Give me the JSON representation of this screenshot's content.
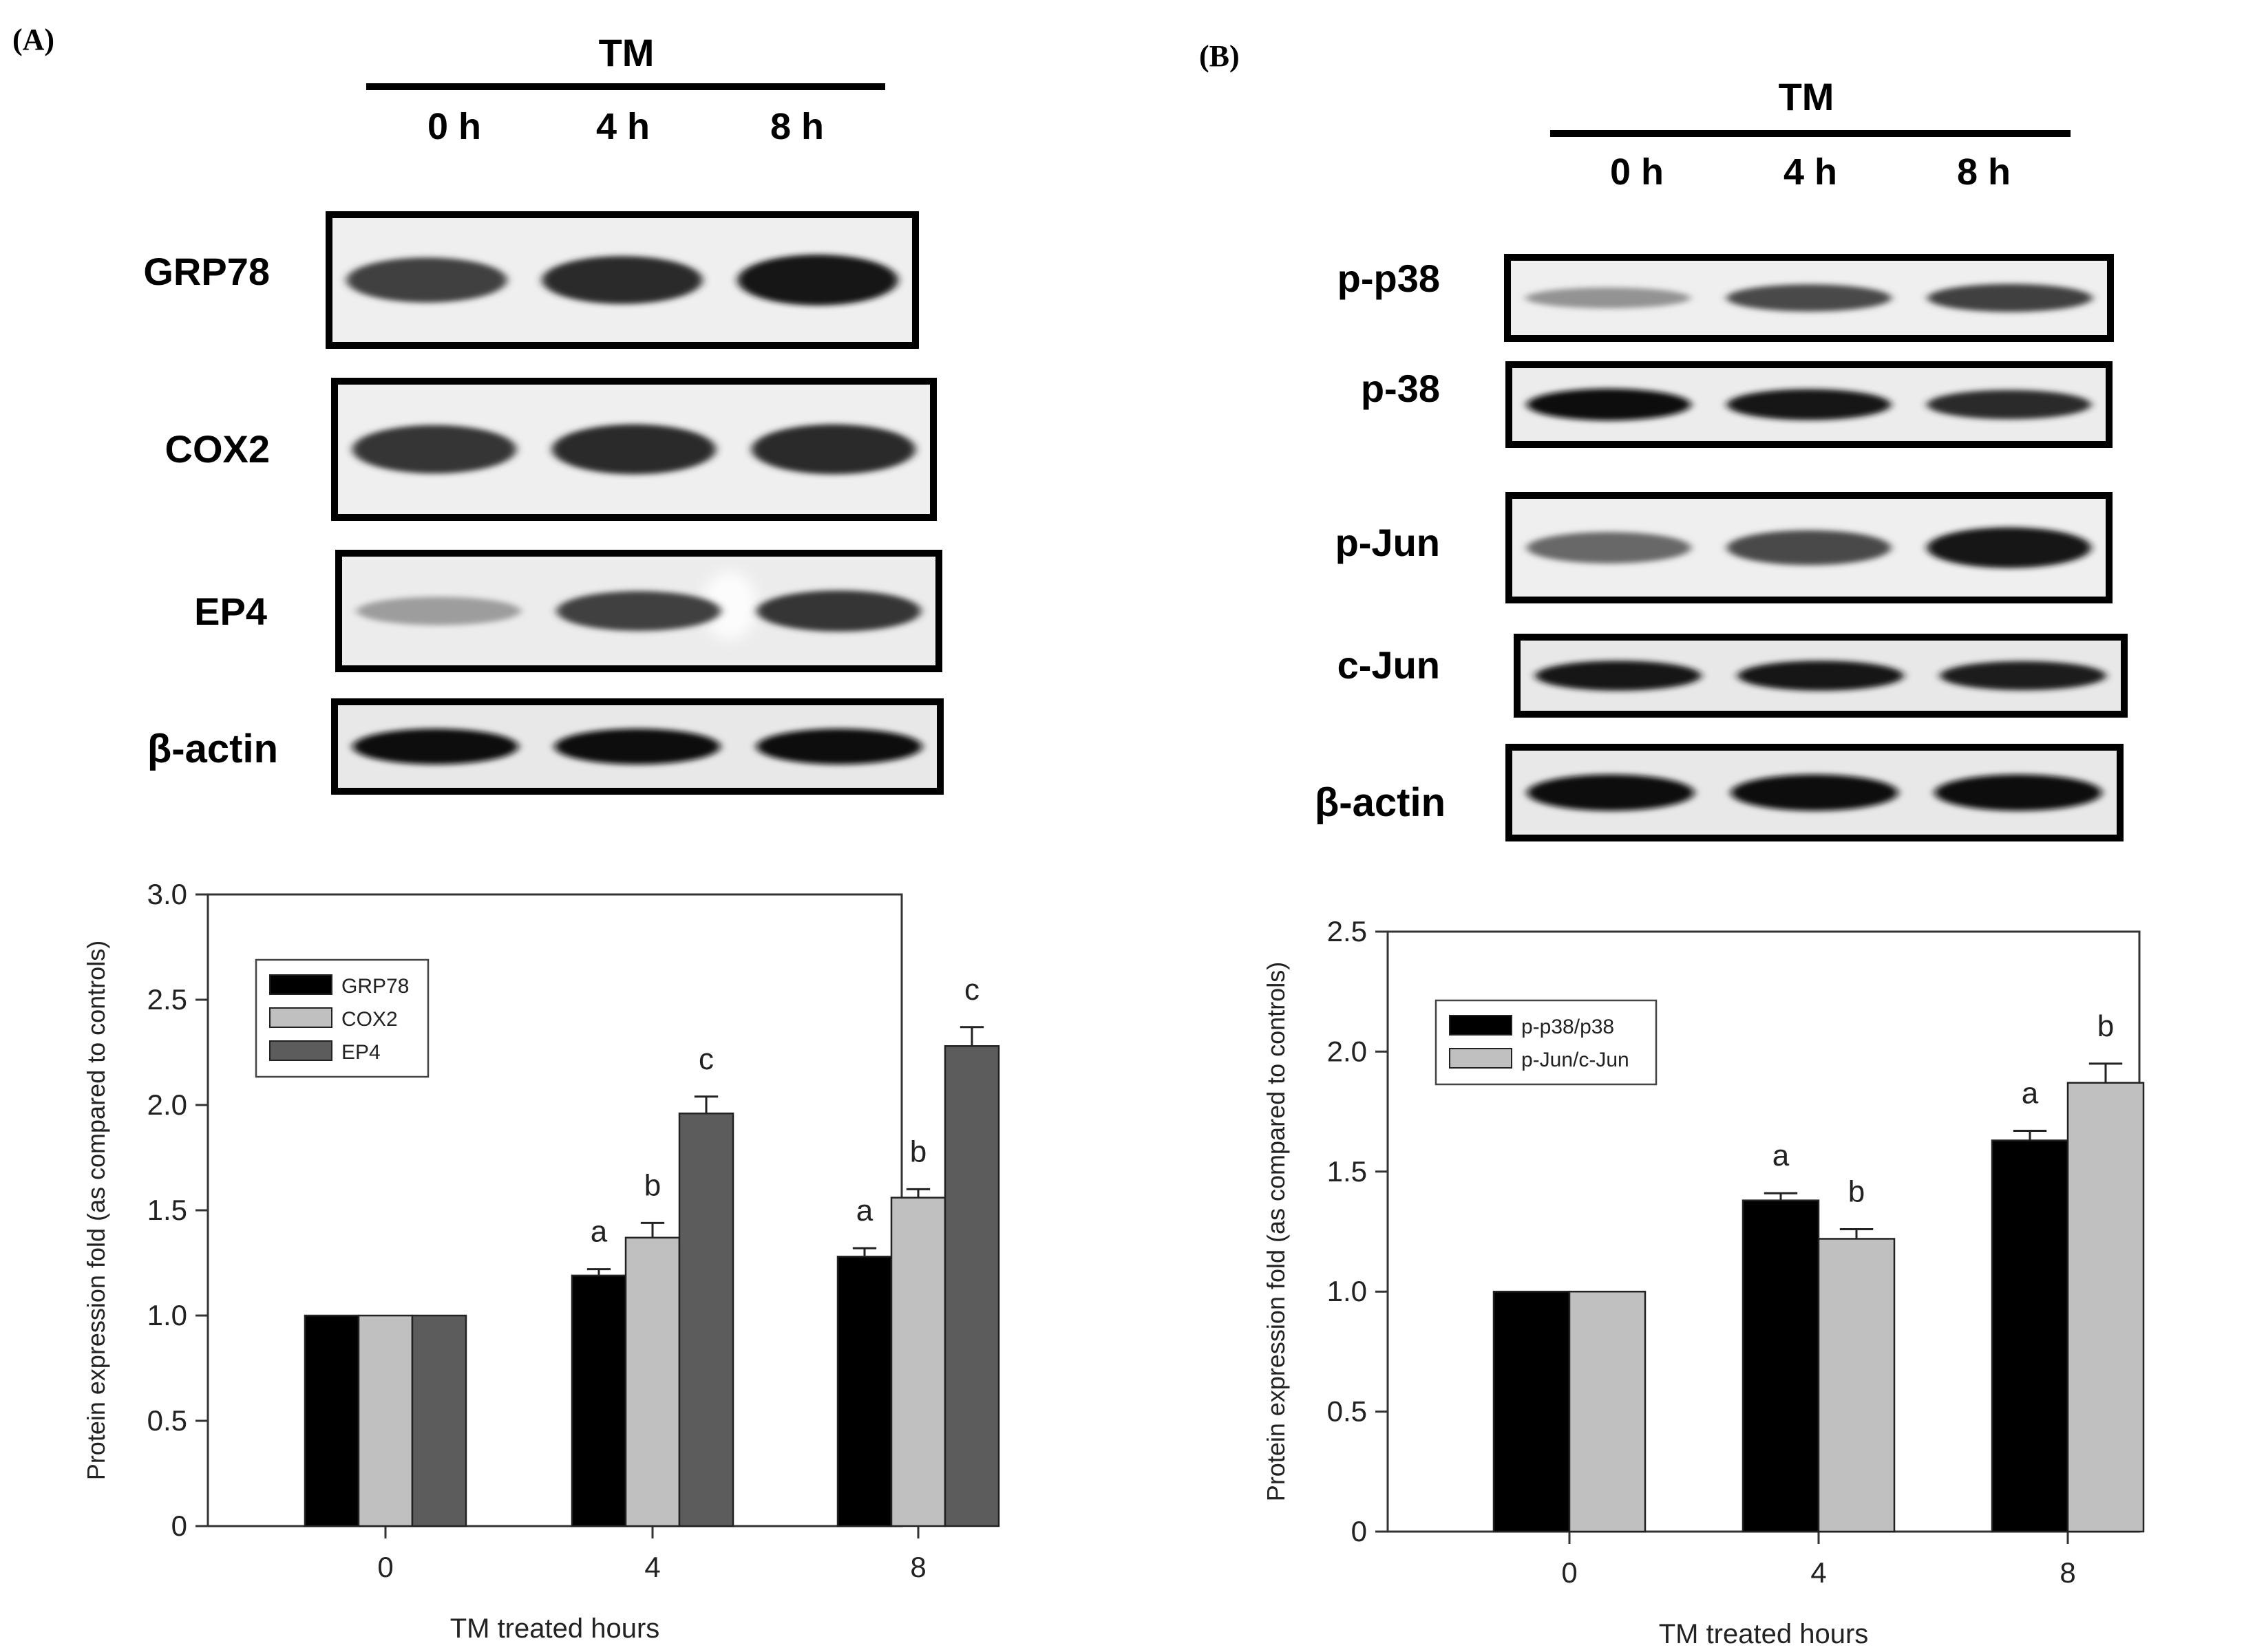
{
  "panels": [
    {
      "label": "(A)",
      "header": {
        "treatment": "TM",
        "lanes": [
          "0 h",
          "4 h",
          "8 h"
        ]
      },
      "blots": [
        {
          "label": "GRP78",
          "bands": [
            0.75,
            0.85,
            0.95
          ],
          "noise": 0.18
        },
        {
          "label": "COX2",
          "bands": [
            0.8,
            0.85,
            0.85
          ],
          "noise": 0.15
        },
        {
          "label": "EP4",
          "bands": [
            0.3,
            0.75,
            0.8
          ],
          "noise": 0.35
        },
        {
          "label": "β-actin",
          "bands": [
            1.0,
            1.0,
            1.0
          ],
          "noise": 0.12
        }
      ]
    },
    {
      "label": "(B)",
      "header": {
        "treatment": "TM",
        "lanes": [
          "0 h",
          "4 h",
          "8 h"
        ]
      },
      "blots": [
        {
          "label": "p-p38",
          "bands": [
            0.35,
            0.7,
            0.75
          ],
          "noise": 0.25
        },
        {
          "label": "p-38",
          "bands": [
            1.0,
            0.95,
            0.85
          ],
          "noise": 0.12
        },
        {
          "label": "p-Jun",
          "bands": [
            0.55,
            0.7,
            0.95
          ],
          "noise": 0.22
        },
        {
          "label": "c-Jun",
          "bands": [
            0.95,
            0.95,
            0.9
          ],
          "noise": 0.15
        },
        {
          "label": "β-actin",
          "bands": [
            1.0,
            1.0,
            1.0
          ],
          "noise": 0.12
        }
      ]
    }
  ],
  "chart_data": [
    {
      "type": "bar",
      "categories": [
        "0",
        "4",
        "8"
      ],
      "series": [
        {
          "name": "GRP78",
          "color": "#000000",
          "values": [
            1.0,
            1.19,
            1.28
          ],
          "errors": [
            0,
            0.03,
            0.04
          ],
          "letters": [
            "",
            "a",
            "a"
          ]
        },
        {
          "name": "COX2",
          "color": "#c0c0c0",
          "values": [
            1.0,
            1.37,
            1.56
          ],
          "errors": [
            0,
            0.07,
            0.04
          ],
          "letters": [
            "",
            "b",
            "b"
          ]
        },
        {
          "name": "EP4",
          "color": "#5c5c5c",
          "values": [
            1.0,
            1.96,
            2.28
          ],
          "errors": [
            0,
            0.08,
            0.09
          ],
          "letters": [
            "",
            "c",
            "c"
          ]
        }
      ],
      "xlabel": "TM treated hours",
      "ylabel": "Protein expression fold (as compared to controls)",
      "ylim": [
        0,
        3.0
      ],
      "yticks": [
        "0",
        "0.5",
        "1.0",
        "1.5",
        "2.0",
        "2.5",
        "3.0"
      ],
      "legend_placement": "top-left",
      "grid": false
    },
    {
      "type": "bar",
      "categories": [
        "0",
        "4",
        "8"
      ],
      "series": [
        {
          "name": "p-p38/p38",
          "color": "#000000",
          "values": [
            1.0,
            1.38,
            1.63
          ],
          "errors": [
            0,
            0.03,
            0.04
          ],
          "letters": [
            "",
            "a",
            "a"
          ]
        },
        {
          "name": "p-Jun/c-Jun",
          "color": "#c0c0c0",
          "values": [
            1.0,
            1.22,
            1.87
          ],
          "errors": [
            0,
            0.04,
            0.08
          ],
          "letters": [
            "",
            "b",
            "b"
          ]
        }
      ],
      "xlabel": "TM treated hours",
      "ylabel": "Protein expression fold (as compared to controls)",
      "ylim": [
        0,
        2.5
      ],
      "yticks": [
        "0",
        "0.5",
        "1.0",
        "1.5",
        "2.0",
        "2.5"
      ],
      "legend_placement": "top-left",
      "grid": false
    }
  ]
}
